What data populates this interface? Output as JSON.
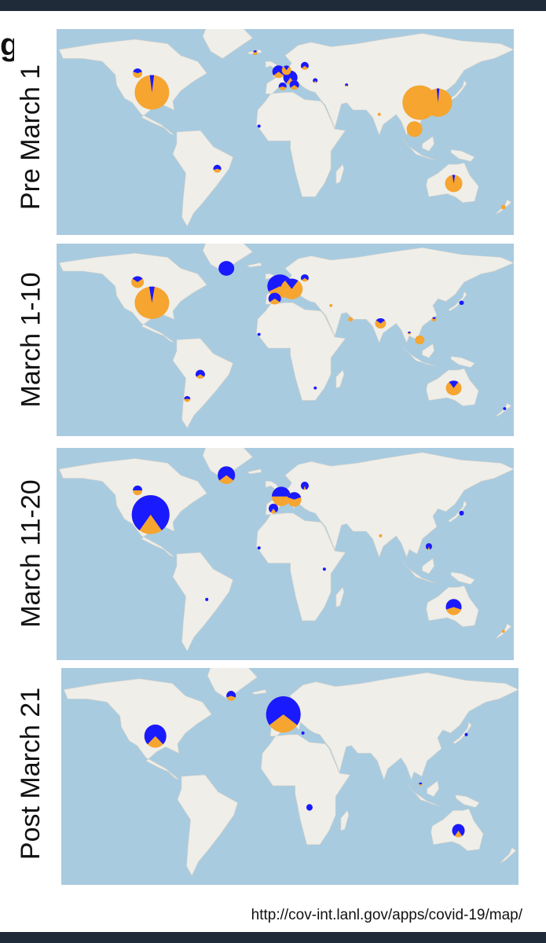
{
  "colors": {
    "ocean": "#a8cbe0",
    "land": "#efeee9",
    "series_a": "#1a1aff",
    "series_b": "#f5a530"
  },
  "edge_glyph": "g",
  "source_url": "http://cov-int.lanl.gov/apps/covid-19/map/",
  "panels": [
    {
      "label": "Pre March 1",
      "markers": [
        {
          "lon": -97,
          "lat": 37,
          "size": 22,
          "blue": 0.04
        },
        {
          "lon": -108,
          "lat": 50,
          "size": 6,
          "blue": 0.4
        },
        {
          "lon": -18,
          "lat": 64,
          "size": 3,
          "blue": 0.3
        },
        {
          "lon": 0,
          "lat": 51,
          "size": 8,
          "blue": 0.7
        },
        {
          "lon": 9,
          "lat": 47,
          "size": 9,
          "blue": 0.8
        },
        {
          "lon": 12,
          "lat": 42,
          "size": 6,
          "blue": 0.7
        },
        {
          "lon": 3,
          "lat": 41,
          "size": 5,
          "blue": 0.6
        },
        {
          "lon": 20,
          "lat": 55,
          "size": 5,
          "blue": 0.7
        },
        {
          "lon": 6,
          "lat": 52,
          "size": 6,
          "blue": 0.2
        },
        {
          "lon": 28,
          "lat": 45,
          "size": 3,
          "blue": 0.8
        },
        {
          "lon": 52,
          "lat": 42,
          "size": 2,
          "blue": 0.8
        },
        {
          "lon": -47,
          "lat": -15,
          "size": 5,
          "blue": 0.6
        },
        {
          "lon": -15,
          "lat": 14,
          "size": 2,
          "blue": 1
        },
        {
          "lon": 108,
          "lat": 30,
          "size": 22,
          "blue": 0
        },
        {
          "lon": 122,
          "lat": 30,
          "size": 18,
          "blue": 0.03
        },
        {
          "lon": 104,
          "lat": 12,
          "size": 10,
          "blue": 0
        },
        {
          "lon": 134,
          "lat": -25,
          "size": 11,
          "blue": 0.05
        },
        {
          "lon": 77,
          "lat": 22,
          "size": 2,
          "blue": 0
        },
        {
          "lon": 172,
          "lat": -41,
          "size": 3,
          "blue": 0
        }
      ]
    },
    {
      "label": "March 1-10",
      "markers": [
        {
          "lon": -97,
          "lat": 37,
          "size": 22,
          "blue": 0.05
        },
        {
          "lon": -108,
          "lat": 52,
          "size": 8,
          "blue": 0.3
        },
        {
          "lon": -40,
          "lat": 62,
          "size": 10,
          "blue": 1
        },
        {
          "lon": 1,
          "lat": 49,
          "size": 16,
          "blue": 0.65
        },
        {
          "lon": 10,
          "lat": 47,
          "size": 14,
          "blue": 0.2
        },
        {
          "lon": -3,
          "lat": 40,
          "size": 8,
          "blue": 0.7
        },
        {
          "lon": 20,
          "lat": 55,
          "size": 5,
          "blue": 0.7
        },
        {
          "lon": 78,
          "lat": 22,
          "size": 7,
          "blue": 0.3
        },
        {
          "lon": 108,
          "lat": 10,
          "size": 6,
          "blue": 0
        },
        {
          "lon": 134,
          "lat": -25,
          "size": 10,
          "blue": 0.2
        },
        {
          "lon": -60,
          "lat": -15,
          "size": 6,
          "blue": 0.7
        },
        {
          "lon": -70,
          "lat": -33,
          "size": 4,
          "blue": 0.5
        },
        {
          "lon": 140,
          "lat": 37,
          "size": 3,
          "blue": 1
        },
        {
          "lon": 119,
          "lat": 25,
          "size": 3,
          "blue": 0.3
        },
        {
          "lon": 55,
          "lat": 25,
          "size": 3,
          "blue": 0
        },
        {
          "lon": 100,
          "lat": 15,
          "size": 2,
          "blue": 0.5
        },
        {
          "lon": -15,
          "lat": 14,
          "size": 2,
          "blue": 1
        },
        {
          "lon": 173,
          "lat": -40,
          "size": 2,
          "blue": 1
        },
        {
          "lon": 28,
          "lat": -25,
          "size": 2,
          "blue": 1
        },
        {
          "lon": 40,
          "lat": 35,
          "size": 2,
          "blue": 0
        }
      ]
    },
    {
      "label": "March 11-20",
      "markers": [
        {
          "lon": -98,
          "lat": 36,
          "size": 24,
          "blue": 0.8
        },
        {
          "lon": -108,
          "lat": 52,
          "size": 6,
          "blue": 0.5
        },
        {
          "lon": -40,
          "lat": 62,
          "size": 11,
          "blue": 0.7
        },
        {
          "lon": 2,
          "lat": 48,
          "size": 12,
          "blue": 0.5
        },
        {
          "lon": 12,
          "lat": 46,
          "size": 9,
          "blue": 0.4
        },
        {
          "lon": -4,
          "lat": 40,
          "size": 6,
          "blue": 0.8
        },
        {
          "lon": 20,
          "lat": 55,
          "size": 5,
          "blue": 0.9
        },
        {
          "lon": 134,
          "lat": -25,
          "size": 10,
          "blue": 0.6
        },
        {
          "lon": 140,
          "lat": 37,
          "size": 3,
          "blue": 1
        },
        {
          "lon": 115,
          "lat": 15,
          "size": 4,
          "blue": 0.9
        },
        {
          "lon": -15,
          "lat": 14,
          "size": 2,
          "blue": 1
        },
        {
          "lon": 35,
          "lat": 0,
          "size": 2,
          "blue": 1
        },
        {
          "lon": 78,
          "lat": 22,
          "size": 2,
          "blue": 0
        },
        {
          "lon": -55,
          "lat": -20,
          "size": 2,
          "blue": 1
        },
        {
          "lon": 172,
          "lat": -41,
          "size": 2,
          "blue": 0
        }
      ]
    },
    {
      "label": "Post March 21",
      "markers": [
        {
          "lon": -98,
          "lat": 36,
          "size": 14,
          "blue": 0.75
        },
        {
          "lon": 0,
          "lat": 50,
          "size": 22,
          "blue": 0.7
        },
        {
          "lon": -40,
          "lat": 62,
          "size": 6,
          "blue": 0.6
        },
        {
          "lon": 134,
          "lat": -25,
          "size": 8,
          "blue": 0.8
        },
        {
          "lon": 20,
          "lat": -10,
          "size": 4,
          "blue": 1
        },
        {
          "lon": 140,
          "lat": 37,
          "size": 2,
          "blue": 1
        },
        {
          "lon": 105,
          "lat": 5,
          "size": 2,
          "blue": 0.5
        },
        {
          "lon": 15,
          "lat": 38,
          "size": 2,
          "blue": 1
        }
      ]
    }
  ]
}
